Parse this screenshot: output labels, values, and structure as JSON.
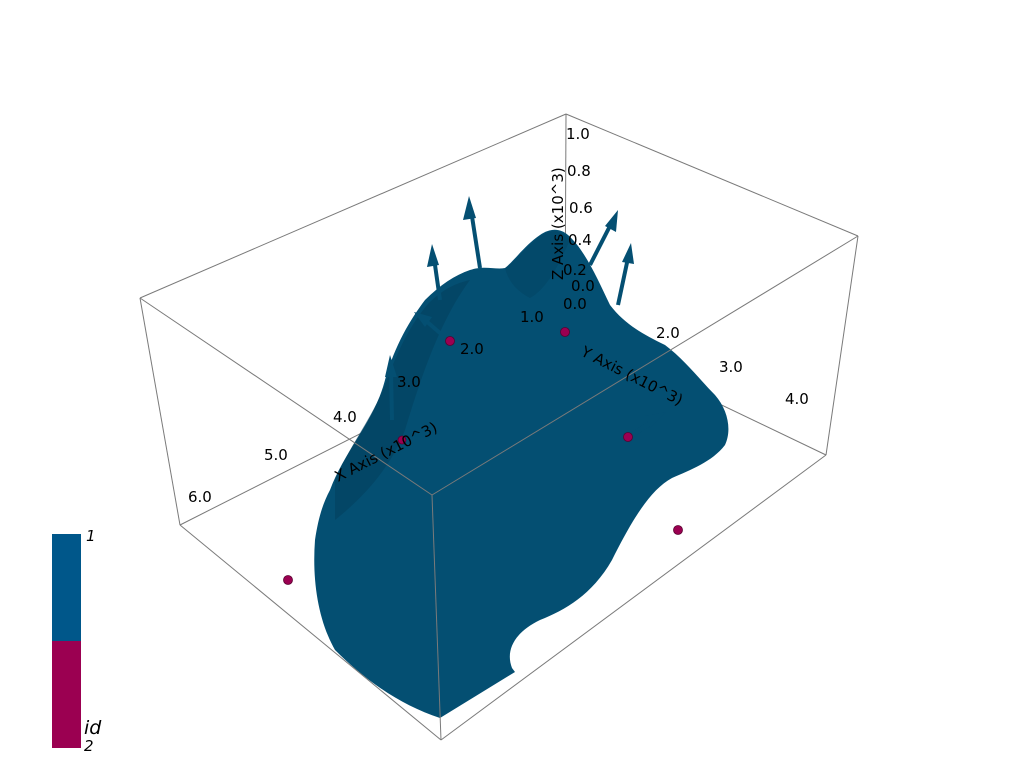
{
  "scene": {
    "colors": {
      "background": "#ffffff",
      "surface": "#044f72",
      "surface_shade": "#033f5c",
      "point": "#9b0051",
      "bounding_box": "#7a7a7a"
    },
    "x_axis": {
      "title": "X Axis (x10^3)",
      "ticks": [
        "2.0",
        "3.0",
        "4.0",
        "5.0",
        "6.0"
      ]
    },
    "y_axis": {
      "title": "Y Axis (x10^3)",
      "ticks": [
        "0.0",
        "1.0",
        "2.0",
        "3.0",
        "4.0"
      ]
    },
    "z_axis": {
      "title": "Z Axis (x10^3)",
      "ticks": [
        "0.0",
        "0.2",
        "0.4",
        "0.6",
        "0.8",
        "1.0"
      ]
    },
    "orientation_arrows": 6,
    "points": 6
  },
  "legend": {
    "title": "id",
    "max_label": "1",
    "min_label": "2",
    "colors": [
      "#00578a",
      "#9b0051"
    ]
  }
}
